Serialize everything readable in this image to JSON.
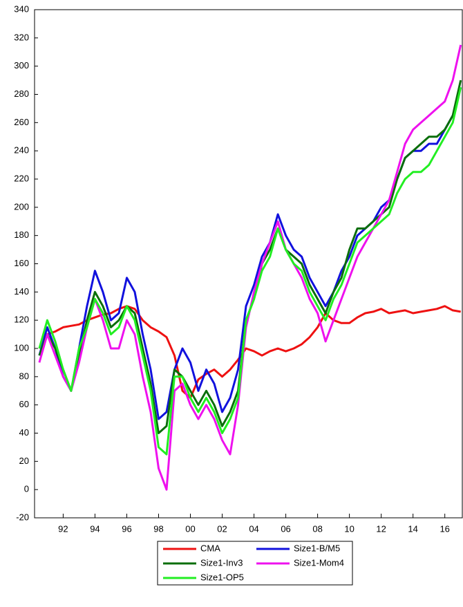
{
  "chart_data": {
    "type": "line",
    "x": [
      1990.5,
      1991,
      1991.5,
      1992,
      1992.5,
      1993,
      1993.5,
      1994,
      1994.5,
      1995,
      1995.5,
      1996,
      1996.5,
      1997,
      1997.5,
      1998,
      1998.5,
      1999,
      1999.5,
      2000,
      2000.5,
      2001,
      2001.5,
      2002,
      2002.5,
      2003,
      2003.5,
      2004,
      2004.5,
      2005,
      2005.5,
      2006,
      2006.5,
      2007,
      2007.5,
      2008,
      2008.5,
      2009,
      2009.5,
      2010,
      2010.5,
      2011,
      2011.5,
      2012,
      2012.5,
      2013,
      2013.5,
      2014,
      2014.5,
      2015,
      2015.5,
      2016,
      2016.5,
      2017
    ],
    "series": [
      {
        "name": "CMA",
        "color": "#ee1111",
        "values": [
          100,
          110,
          112,
          115,
          116,
          117,
          120,
          122,
          124,
          125,
          128,
          130,
          128,
          120,
          115,
          112,
          108,
          95,
          70,
          65,
          78,
          82,
          85,
          80,
          85,
          92,
          100,
          98,
          95,
          98,
          100,
          98,
          100,
          103,
          108,
          115,
          125,
          120,
          118,
          118,
          122,
          125,
          126,
          128,
          125,
          126,
          127,
          125,
          126,
          127,
          128,
          130,
          127,
          126
        ]
      },
      {
        "name": "Size1-B/M5",
        "color": "#1111dd",
        "values": [
          95,
          115,
          100,
          80,
          70,
          100,
          130,
          155,
          140,
          120,
          125,
          150,
          140,
          110,
          85,
          50,
          55,
          85,
          100,
          90,
          70,
          85,
          75,
          55,
          65,
          85,
          130,
          145,
          165,
          175,
          195,
          180,
          170,
          165,
          150,
          140,
          130,
          140,
          155,
          165,
          180,
          185,
          190,
          200,
          205,
          220,
          235,
          240,
          240,
          245,
          245,
          255,
          265,
          285
        ]
      },
      {
        "name": "Size1-Inv3",
        "color": "#0a6e0a",
        "values": [
          95,
          110,
          100,
          85,
          70,
          95,
          120,
          140,
          130,
          115,
          120,
          130,
          125,
          100,
          75,
          40,
          45,
          85,
          80,
          70,
          60,
          70,
          60,
          45,
          55,
          70,
          120,
          135,
          160,
          170,
          185,
          170,
          165,
          160,
          145,
          135,
          125,
          140,
          150,
          170,
          185,
          185,
          190,
          195,
          200,
          220,
          235,
          240,
          245,
          250,
          250,
          255,
          265,
          290
        ]
      },
      {
        "name": "Size1-Mom4",
        "color": "#ee11ee",
        "values": [
          90,
          110,
          95,
          80,
          70,
          90,
          115,
          135,
          120,
          100,
          100,
          120,
          110,
          80,
          55,
          15,
          0,
          70,
          75,
          60,
          50,
          60,
          50,
          35,
          25,
          60,
          115,
          140,
          160,
          175,
          190,
          170,
          160,
          150,
          135,
          125,
          105,
          120,
          135,
          150,
          165,
          175,
          185,
          195,
          205,
          225,
          245,
          255,
          260,
          265,
          270,
          275,
          290,
          315
        ]
      },
      {
        "name": "Size1-OP5",
        "color": "#22ee22",
        "values": [
          100,
          120,
          105,
          85,
          70,
          100,
          115,
          135,
          125,
          110,
          115,
          130,
          120,
          95,
          70,
          30,
          25,
          80,
          80,
          65,
          55,
          65,
          55,
          40,
          50,
          65,
          120,
          135,
          155,
          165,
          185,
          170,
          160,
          155,
          140,
          130,
          120,
          135,
          145,
          160,
          175,
          180,
          185,
          190,
          195,
          210,
          220,
          225,
          225,
          230,
          240,
          250,
          260,
          285
        ]
      }
    ],
    "xlim": [
      1990.2,
      2017.1
    ],
    "xticks": [
      {
        "value": 1992,
        "label": "92"
      },
      {
        "value": 1994,
        "label": "94"
      },
      {
        "value": 1996,
        "label": "96"
      },
      {
        "value": 1998,
        "label": "98"
      },
      {
        "value": 2000,
        "label": "00"
      },
      {
        "value": 2002,
        "label": "02"
      },
      {
        "value": 2004,
        "label": "04"
      },
      {
        "value": 2006,
        "label": "06"
      },
      {
        "value": 2008,
        "label": "08"
      },
      {
        "value": 2010,
        "label": "10"
      },
      {
        "value": 2012,
        "label": "12"
      },
      {
        "value": 2014,
        "label": "14"
      },
      {
        "value": 2016,
        "label": "16"
      }
    ],
    "ylim": [
      -20,
      340
    ],
    "yticks": [
      -20,
      0,
      20,
      40,
      60,
      80,
      100,
      120,
      140,
      160,
      180,
      200,
      220,
      240,
      260,
      280,
      300,
      320,
      340
    ],
    "legend": "bottom"
  }
}
